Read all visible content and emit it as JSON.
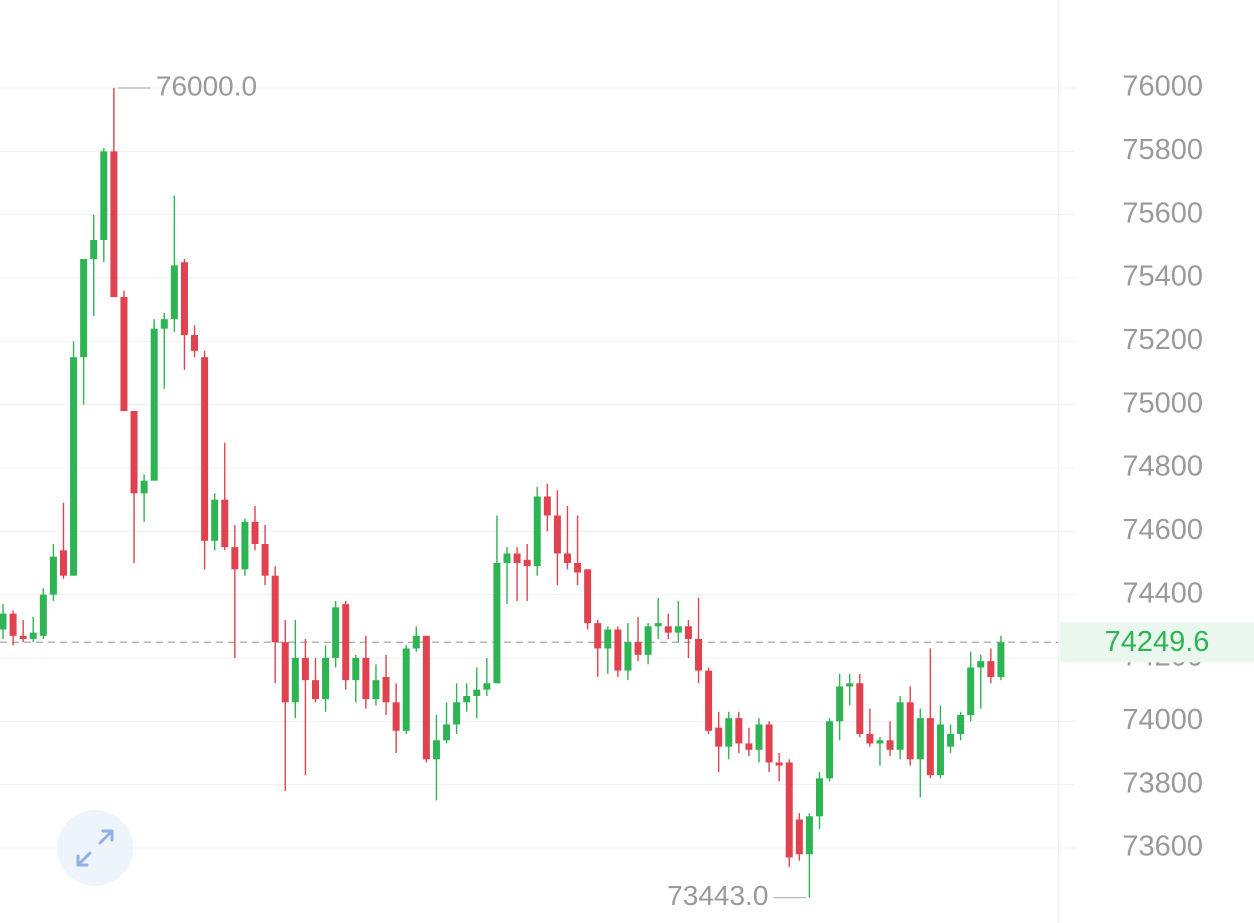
{
  "chart_data": {
    "type": "candlestick",
    "up_color": "#2fb454",
    "down_color": "#e0434f",
    "ylim": [
      73363,
      76278
    ],
    "yticks": [
      73600,
      73800,
      74000,
      74200,
      74400,
      74600,
      74800,
      75000,
      75200,
      75400,
      75600,
      75800,
      76000
    ],
    "grid": true,
    "high_label": {
      "value": 76000,
      "label": "76000.0"
    },
    "low_label": {
      "value": 73443,
      "label": "73443.0"
    },
    "last_price": 74249.6,
    "open": [
      74290,
      74340,
      74270,
      74260,
      74270,
      74400,
      74540,
      74460,
      75150,
      75460,
      75520,
      75800,
      75340,
      74980,
      74720,
      74760,
      75240,
      75270,
      75450,
      75220,
      75150,
      74570,
      74700,
      74550,
      74480,
      74630,
      74560,
      74460,
      74250,
      74060,
      74200,
      74130,
      74070,
      74200,
      74370,
      74130,
      74200,
      74070,
      74140,
      74060,
      73970,
      74230,
      74270,
      73880,
      73940,
      73990,
      74060,
      74080,
      74100,
      74120,
      74500,
      74530,
      74510,
      74490,
      74710,
      74650,
      74530,
      74500,
      74480,
      74310,
      74230,
      74290,
      74160,
      74250,
      74210,
      74300,
      74300,
      74280,
      74300,
      74260,
      74160,
      73980,
      73920,
      74010,
      73930,
      73910,
      73990,
      73870,
      73870,
      73690,
      73580,
      73700,
      73820,
      74000,
      74110,
      74120,
      73960,
      73930,
      73940,
      73910,
      74060,
      73880,
      74010,
      73830,
      73920,
      73960,
      74020,
      74170,
      74190,
      74140
    ],
    "high": [
      74370,
      74350,
      74320,
      74330,
      74420,
      74560,
      74690,
      75200,
      75450,
      75600,
      75810,
      76000,
      75360,
      74980,
      74780,
      75270,
      75290,
      75660,
      75460,
      75250,
      75170,
      74720,
      74880,
      74620,
      74640,
      74680,
      74620,
      74490,
      74320,
      74320,
      74260,
      74200,
      74240,
      74380,
      74380,
      74210,
      74270,
      74180,
      74210,
      74120,
      74240,
      74300,
      74270,
      74020,
      74060,
      74120,
      74120,
      74170,
      74200,
      74650,
      74550,
      74550,
      74560,
      74740,
      74750,
      74730,
      74680,
      74650,
      74480,
      74320,
      74300,
      74300,
      74310,
      74330,
      74310,
      74390,
      74340,
      74380,
      74320,
      74390,
      74170,
      74030,
      74030,
      74030,
      73980,
      74010,
      74000,
      73900,
      73880,
      73710,
      73710,
      73840,
      74010,
      74150,
      74150,
      74150,
      74040,
      73950,
      74000,
      74080,
      74110,
      74040,
      74230,
      74050,
      73990,
      74030,
      74220,
      74210,
      74230,
      74270
    ],
    "low": [
      74260,
      74240,
      74250,
      74250,
      74260,
      74380,
      74450,
      74460,
      75000,
      75280,
      75450,
      75350,
      74990,
      74500,
      74630,
      74760,
      75050,
      75230,
      75110,
      75150,
      74480,
      74540,
      74540,
      74200,
      74460,
      74540,
      74430,
      74120,
      73780,
      74010,
      73830,
      74060,
      74030,
      74170,
      74100,
      74060,
      74040,
      74050,
      74020,
      73900,
      73960,
      74220,
      73870,
      73750,
      73930,
      73960,
      74030,
      74010,
      74080,
      74120,
      74370,
      74380,
      74380,
      74460,
      74600,
      74430,
      74480,
      74430,
      74290,
      74140,
      74150,
      74140,
      74130,
      74190,
      74180,
      74260,
      74260,
      74250,
      74200,
      74120,
      73960,
      73840,
      73880,
      73900,
      73890,
      73870,
      73840,
      73810,
      73540,
      73560,
      73443,
      73660,
      73810,
      73940,
      74050,
      73950,
      73920,
      73860,
      73890,
      73880,
      73860,
      73760,
      73820,
      73820,
      73900,
      73940,
      74000,
      74040,
      74120,
      74130
    ],
    "close": [
      74340,
      74270,
      74260,
      74280,
      74400,
      74520,
      74460,
      75150,
      75460,
      75520,
      75800,
      75340,
      74980,
      74720,
      74760,
      75240,
      75270,
      75440,
      75220,
      75170,
      74570,
      74700,
      74550,
      74480,
      74630,
      74560,
      74460,
      74250,
      74060,
      74200,
      74130,
      74070,
      74200,
      74360,
      74130,
      74200,
      74070,
      74130,
      74060,
      73970,
      74230,
      74270,
      73880,
      73940,
      73990,
      74060,
      74080,
      74100,
      74120,
      74500,
      74530,
      74500,
      74490,
      74710,
      74650,
      74530,
      74500,
      74470,
      74310,
      74230,
      74290,
      74160,
      74250,
      74210,
      74300,
      74310,
      74280,
      74300,
      74260,
      74160,
      73970,
      73920,
      74010,
      73930,
      73910,
      73990,
      73870,
      73860,
      73570,
      73580,
      73700,
      73820,
      74000,
      74110,
      74120,
      73960,
      73930,
      73940,
      73910,
      74060,
      73880,
      74010,
      73830,
      73990,
      73960,
      74020,
      74170,
      74190,
      74140,
      74250
    ]
  }
}
